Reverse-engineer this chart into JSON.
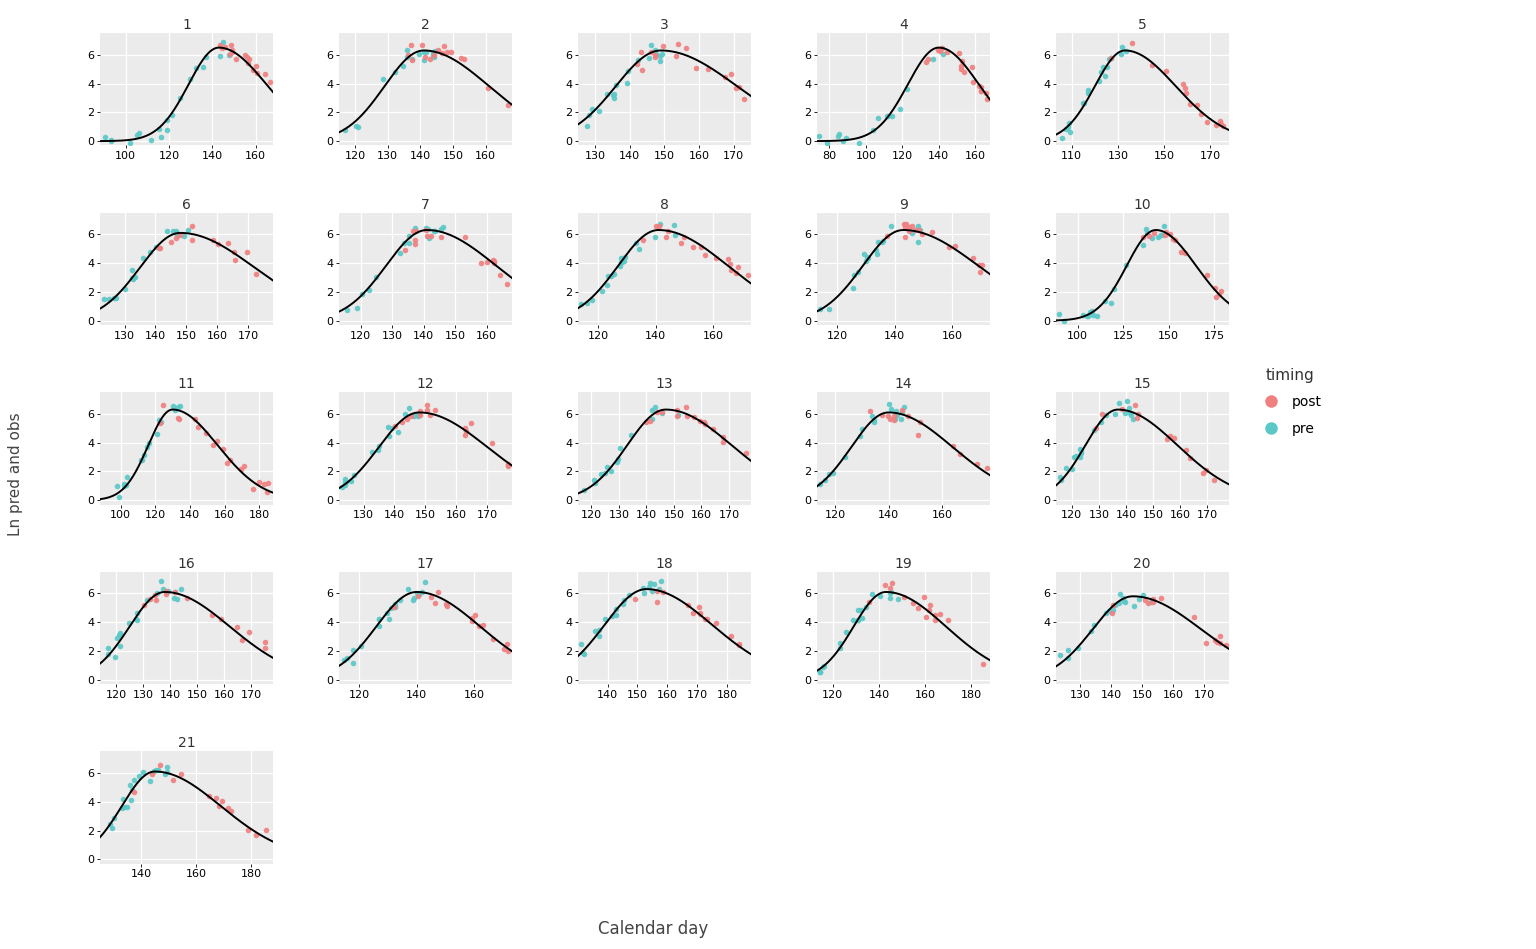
{
  "n_panels": 21,
  "ncols": 5,
  "panel_bg": "#EBEBEB",
  "figure_bg": "#FFFFFF",
  "grid_color": "#FFFFFF",
  "line_color": "#000000",
  "post_color": "#F08080",
  "pre_color": "#5BC8C8",
  "title_fontsize": 10,
  "axis_fontsize": 8,
  "ylabel": "Ln pred and obs",
  "xlabel": "Calendar day",
  "legend_title": "timing",
  "legend_post": "post",
  "legend_pre": "pre",
  "panels": [
    {
      "id": 1,
      "peak": 143,
      "xlim": [
        88,
        168
      ],
      "xticks": [
        100,
        120,
        140,
        160
      ],
      "mu": 143,
      "sigma_l": 14,
      "sigma_r": 22,
      "peak_val": 6.5
    },
    {
      "id": 2,
      "peak": 141,
      "xlim": [
        115,
        168
      ],
      "xticks": [
        120,
        130,
        140,
        150,
        160
      ],
      "mu": 141,
      "sigma_l": 12,
      "sigma_r": 20,
      "peak_val": 6.3
    },
    {
      "id": 3,
      "peak": 149,
      "xlim": [
        125,
        175
      ],
      "xticks": [
        130,
        140,
        150,
        160,
        170
      ],
      "mu": 149,
      "sigma_l": 13,
      "sigma_r": 22,
      "peak_val": 6.3
    },
    {
      "id": 4,
      "peak": 140,
      "xlim": [
        73,
        168
      ],
      "xticks": [
        80,
        100,
        120,
        140,
        160
      ],
      "mu": 140,
      "sigma_l": 17,
      "sigma_r": 22,
      "peak_val": 6.5
    },
    {
      "id": 5,
      "peak": 133,
      "xlim": [
        103,
        178
      ],
      "xticks": [
        110,
        130,
        150,
        170
      ],
      "mu": 133,
      "sigma_l": 13,
      "sigma_r": 22,
      "peak_val": 6.3
    },
    {
      "id": 6,
      "peak": 148,
      "xlim": [
        122,
        178
      ],
      "xticks": [
        130,
        140,
        150,
        160,
        170
      ],
      "mu": 148,
      "sigma_l": 13,
      "sigma_r": 24,
      "peak_val": 6.1
    },
    {
      "id": 7,
      "peak": 141,
      "xlim": [
        113,
        168
      ],
      "xticks": [
        120,
        130,
        140,
        150,
        160
      ],
      "mu": 141,
      "sigma_l": 13,
      "sigma_r": 22,
      "peak_val": 6.3
    },
    {
      "id": 8,
      "peak": 141,
      "xlim": [
        113,
        173
      ],
      "xticks": [
        120,
        140,
        160
      ],
      "mu": 141,
      "sigma_l": 14,
      "sigma_r": 24,
      "peak_val": 6.3
    },
    {
      "id": 9,
      "peak": 143,
      "xlim": [
        113,
        173
      ],
      "xticks": [
        120,
        140,
        160
      ],
      "mu": 143,
      "sigma_l": 14,
      "sigma_r": 26,
      "peak_val": 6.3
    },
    {
      "id": 10,
      "peak": 143,
      "xlim": [
        88,
        183
      ],
      "xticks": [
        100,
        125,
        150,
        175
      ],
      "mu": 143,
      "sigma_l": 16,
      "sigma_r": 22,
      "peak_val": 6.3
    },
    {
      "id": 11,
      "peak": 130,
      "xlim": [
        88,
        188
      ],
      "xticks": [
        100,
        120,
        140,
        160,
        180
      ],
      "mu": 130,
      "sigma_l": 14,
      "sigma_r": 26,
      "peak_val": 6.3
    },
    {
      "id": 12,
      "peak": 148,
      "xlim": [
        122,
        178
      ],
      "xticks": [
        130,
        140,
        150,
        160,
        170
      ],
      "mu": 148,
      "sigma_l": 13,
      "sigma_r": 22,
      "peak_val": 6.1
    },
    {
      "id": 13,
      "peak": 147,
      "xlim": [
        115,
        178
      ],
      "xticks": [
        120,
        130,
        140,
        150,
        160,
        170
      ],
      "mu": 147,
      "sigma_l": 14,
      "sigma_r": 24,
      "peak_val": 6.3
    },
    {
      "id": 14,
      "peak": 140,
      "xlim": [
        113,
        178
      ],
      "xticks": [
        120,
        140,
        160
      ],
      "mu": 140,
      "sigma_l": 14,
      "sigma_r": 24,
      "peak_val": 6.1
    },
    {
      "id": 15,
      "peak": 137,
      "xlim": [
        114,
        178
      ],
      "xticks": [
        120,
        130,
        140,
        150,
        160,
        170
      ],
      "mu": 137,
      "sigma_l": 12,
      "sigma_r": 22,
      "peak_val": 6.3
    },
    {
      "id": 16,
      "peak": 138,
      "xlim": [
        114,
        178
      ],
      "xticks": [
        120,
        130,
        140,
        150,
        160,
        170
      ],
      "mu": 138,
      "sigma_l": 13,
      "sigma_r": 24,
      "peak_val": 6.1
    },
    {
      "id": 17,
      "peak": 140,
      "xlim": [
        113,
        173
      ],
      "xticks": [
        120,
        140,
        160
      ],
      "mu": 140,
      "sigma_l": 14,
      "sigma_r": 22,
      "peak_val": 6.1
    },
    {
      "id": 18,
      "peak": 153,
      "xlim": [
        130,
        188
      ],
      "xticks": [
        140,
        150,
        160,
        170,
        180
      ],
      "mu": 153,
      "sigma_l": 14,
      "sigma_r": 22,
      "peak_val": 6.3
    },
    {
      "id": 19,
      "peak": 143,
      "xlim": [
        113,
        188
      ],
      "xticks": [
        120,
        140,
        160,
        180
      ],
      "mu": 143,
      "sigma_l": 14,
      "sigma_r": 26,
      "peak_val": 6.1
    },
    {
      "id": 20,
      "peak": 147,
      "xlim": [
        122,
        178
      ],
      "xticks": [
        130,
        140,
        150,
        160,
        170
      ],
      "mu": 147,
      "sigma_l": 13,
      "sigma_r": 22,
      "peak_val": 5.8
    },
    {
      "id": 21,
      "peak": 145,
      "xlim": [
        125,
        188
      ],
      "xticks": [
        140,
        160,
        180
      ],
      "mu": 145,
      "sigma_l": 12,
      "sigma_r": 24,
      "peak_val": 6.1
    }
  ]
}
